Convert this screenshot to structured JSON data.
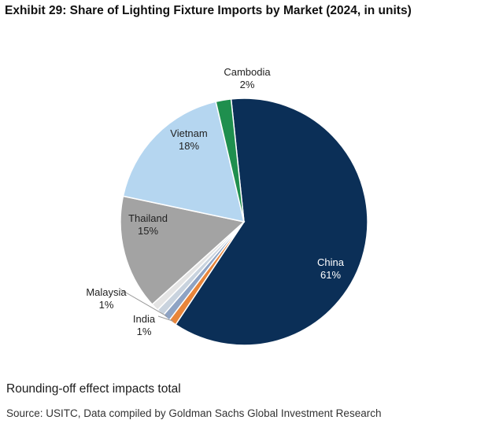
{
  "chart_data": {
    "type": "pie",
    "title": "Exhibit 29: Share of Lighting Fixture Imports by Market (2024, in units)",
    "slices": [
      {
        "name": "China",
        "value": 61,
        "label": "61%",
        "color": "#0b2f57",
        "text_color": "#ffffff"
      },
      {
        "name": "India",
        "value": 1,
        "label": "1%",
        "color": "#e8853a",
        "text_color": "#222222"
      },
      {
        "name": "Malaysia",
        "value": 1,
        "label": "1%",
        "color": "#8ea3c4",
        "text_color": "#222222"
      },
      {
        "name": "",
        "value": 1,
        "label": "",
        "color": "#c9d3de",
        "text_color": "#222222"
      },
      {
        "name": "",
        "value": 1,
        "label": "",
        "color": "#e4e4e4",
        "text_color": "#222222"
      },
      {
        "name": "Thailand",
        "value": 15,
        "label": "15%",
        "color": "#a3a3a3",
        "text_color": "#222222"
      },
      {
        "name": "Vietnam",
        "value": 18,
        "label": "18%",
        "color": "#b5d6f0",
        "text_color": "#222222"
      },
      {
        "name": "Cambodia",
        "value": 2,
        "label": "2%",
        "color": "#1f8f4e",
        "text_color": "#222222"
      }
    ]
  },
  "notes": {
    "rounding": "Rounding-off effect impacts total",
    "source": "Source: USITC, Data compiled by Goldman Sachs Global Investment Research"
  }
}
